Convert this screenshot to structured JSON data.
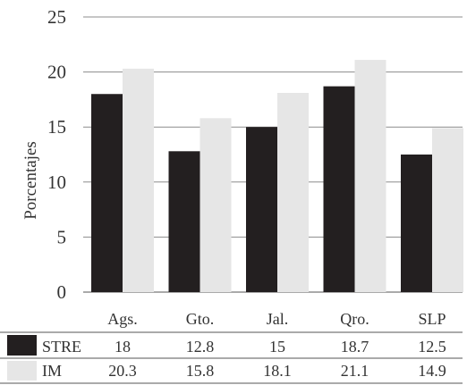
{
  "chart_data": {
    "type": "bar",
    "title": "",
    "xlabel": "",
    "ylabel": "Porcentajes",
    "ylim": [
      0,
      25
    ],
    "yticks": [
      0,
      5,
      10,
      15,
      20,
      25
    ],
    "grid": true,
    "legend": "data-table-below",
    "categories": [
      "Ags.",
      "Gto.",
      "Jal.",
      "Qro.",
      "SLP"
    ],
    "series": [
      {
        "name": "STRE",
        "color": "#231f20",
        "values": [
          18,
          12.8,
          15,
          18.7,
          12.5
        ],
        "labels": [
          "18",
          "12.8",
          "15",
          "18.7",
          "12.5"
        ]
      },
      {
        "name": "IM",
        "color": "#e6e6e6",
        "values": [
          20.3,
          15.8,
          18.1,
          21.1,
          14.9
        ],
        "labels": [
          "20.3",
          "15.8",
          "18.1",
          "21.1",
          "14.9"
        ]
      }
    ]
  }
}
